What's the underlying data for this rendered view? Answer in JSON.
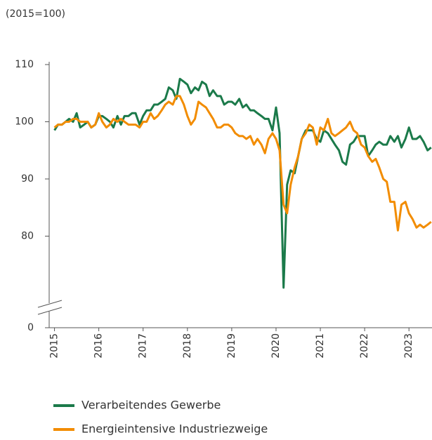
{
  "chart_data": {
    "type": "line",
    "subtitle": "(2015=100)",
    "x": [
      2015,
      2015.08,
      2015.17,
      2015.25,
      2015.33,
      2015.42,
      2015.5,
      2015.58,
      2015.67,
      2015.75,
      2015.83,
      2015.92,
      2016,
      2016.08,
      2016.17,
      2016.25,
      2016.33,
      2016.42,
      2016.5,
      2016.58,
      2016.67,
      2016.75,
      2016.83,
      2016.92,
      2017,
      2017.08,
      2017.17,
      2017.25,
      2017.33,
      2017.42,
      2017.5,
      2017.58,
      2017.67,
      2017.75,
      2017.83,
      2017.92,
      2018,
      2018.08,
      2018.17,
      2018.25,
      2018.33,
      2018.42,
      2018.5,
      2018.58,
      2018.67,
      2018.75,
      2018.83,
      2018.92,
      2019,
      2019.08,
      2019.17,
      2019.25,
      2019.33,
      2019.42,
      2019.5,
      2019.58,
      2019.67,
      2019.75,
      2019.83,
      2019.92,
      2020,
      2020.08,
      2020.17,
      2020.25,
      2020.33,
      2020.42,
      2020.5,
      2020.58,
      2020.67,
      2020.75,
      2020.83,
      2020.92,
      2021,
      2021.08,
      2021.17,
      2021.25,
      2021.33,
      2021.42,
      2021.5,
      2021.58,
      2021.67,
      2021.75,
      2021.83,
      2021.92,
      2022,
      2022.08,
      2022.17,
      2022.25,
      2022.33,
      2022.42,
      2022.5,
      2022.58,
      2022.67,
      2022.75,
      2022.83,
      2022.92,
      2023,
      2023.08,
      2023.17,
      2023.25,
      2023.33,
      2023.42,
      2023.5
    ],
    "series": [
      {
        "name": "Verarbeitendes Gewerbe",
        "color": "#1b7a4a",
        "values": [
          98.5,
          99.5,
          99.5,
          100,
          100.5,
          100,
          101.5,
          99,
          99.5,
          100,
          99,
          99.5,
          101,
          101,
          100.5,
          100,
          99,
          101,
          99.5,
          101,
          101,
          101.5,
          101.5,
          99.5,
          101,
          102,
          102,
          103,
          103,
          103.5,
          104,
          106,
          105.5,
          104,
          107.5,
          107,
          106.5,
          105,
          106,
          105.5,
          107,
          106.5,
          104.5,
          105.5,
          104.5,
          104.5,
          103,
          103.5,
          103.5,
          103,
          104,
          102.5,
          103,
          102,
          102,
          101.5,
          101,
          100.5,
          100.5,
          98.5,
          102.5,
          98,
          71,
          89,
          91.5,
          91,
          94,
          97,
          98.5,
          98.5,
          98.5,
          97,
          96.5,
          98.5,
          98,
          97,
          96,
          95,
          93,
          92.5,
          96,
          96.5,
          97.5,
          97.5,
          97.5,
          94,
          95,
          96,
          96.5,
          96,
          96,
          97.5,
          96.5,
          97.5,
          95.5,
          97,
          99,
          97,
          97,
          97.5,
          96.5,
          95,
          95.5
        ]
      },
      {
        "name": "Energieintensive Industriezweige",
        "color": "#f28c00",
        "values": [
          99,
          99.5,
          99.5,
          100,
          100,
          100.5,
          100.5,
          100,
          100,
          100,
          99,
          99.5,
          101.5,
          100,
          99,
          99.5,
          100.5,
          100,
          100.5,
          100,
          99.5,
          99.5,
          99.5,
          99,
          100,
          100,
          101.5,
          100.5,
          101,
          102,
          103,
          103.5,
          103,
          104.5,
          104.5,
          103,
          101,
          99.5,
          100.5,
          103.5,
          103,
          102.5,
          101.5,
          100.5,
          99,
          99,
          99.5,
          99.5,
          99,
          98,
          97.5,
          97.5,
          97,
          97.5,
          96,
          97,
          96,
          94.5,
          97,
          98,
          97,
          95,
          85.5,
          84,
          89,
          92,
          94,
          97,
          98,
          99.5,
          99,
          96,
          99,
          98.5,
          100.5,
          98,
          97.5,
          98,
          98.5,
          99,
          100,
          98.5,
          98,
          96,
          95.5,
          94,
          93,
          93.5,
          92,
          90,
          89.5,
          86,
          86,
          81,
          85.5,
          86,
          84,
          83,
          81.5,
          82,
          81.5,
          82,
          82.5
        ]
      }
    ],
    "xlim": [
      2014.88,
      2023.52
    ],
    "xticks": [
      2015,
      2016,
      2017,
      2018,
      2019,
      2020,
      2021,
      2022,
      2023
    ],
    "ylim": [
      0,
      110
    ],
    "y_break": [
      0,
      70
    ],
    "yticks": [
      0,
      80,
      90,
      100,
      110
    ],
    "grid": false
  }
}
